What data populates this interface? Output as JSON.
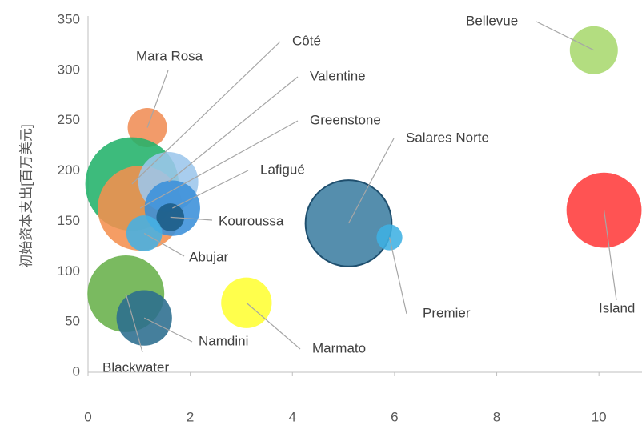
{
  "chart_data": {
    "type": "bubble",
    "y_label": "初始资本支出[百万美元]",
    "xlim": [
      0,
      11
    ],
    "ylim": [
      0,
      350
    ],
    "xticks": [
      0,
      2,
      4,
      6,
      8,
      10
    ],
    "yticks": [
      0,
      50,
      100,
      150,
      200,
      250,
      300,
      350
    ],
    "points": [
      {
        "name": "Bellevue",
        "color": "#a9d86e",
        "x": 9.9,
        "y": 320,
        "size": 9
      },
      {
        "name": "Island",
        "color": "#ff3b3b",
        "x": 10.1,
        "y": 161,
        "size": 22
      },
      {
        "name": "Salares Norte",
        "color": "#3e7ea2",
        "x": 5.1,
        "y": 148,
        "size": 29
      },
      {
        "name": "Premier",
        "color": "#3fb0e2",
        "x": 5.9,
        "y": 134,
        "size": 2.6
      },
      {
        "name": "Marmato",
        "color": "#ffff33",
        "x": 3.1,
        "y": 69,
        "size": 10
      },
      {
        "name": "Mara Rosa",
        "color": "#f08d55",
        "x": 1.16,
        "y": 243,
        "size": 6
      },
      {
        "name": "Côté",
        "color": "#22b26a",
        "x": 0.86,
        "y": 187,
        "size": 34
      },
      {
        "name": "Greenstone",
        "color": "#f4904e",
        "x": 1.02,
        "y": 163,
        "size": 28
      },
      {
        "name": "Valentine",
        "color": "#9cc6ec",
        "x": 1.57,
        "y": 189,
        "size": 14
      },
      {
        "name": "Lafigué",
        "color": "#3a90da",
        "x": 1.65,
        "y": 163,
        "size": 12
      },
      {
        "name": "Kouroussa",
        "color": "#1b5c86",
        "x": 1.61,
        "y": 154,
        "size": 3
      },
      {
        "name": "Abujar",
        "color": "#45b0e4",
        "x": 1.1,
        "y": 138,
        "size": 5
      },
      {
        "name": "Blackwater",
        "color": "#68b14a",
        "x": 0.74,
        "y": 78,
        "size": 23
      },
      {
        "name": "Namdini",
        "color": "#2b6d8e",
        "x": 1.1,
        "y": 54,
        "size": 12
      }
    ]
  }
}
